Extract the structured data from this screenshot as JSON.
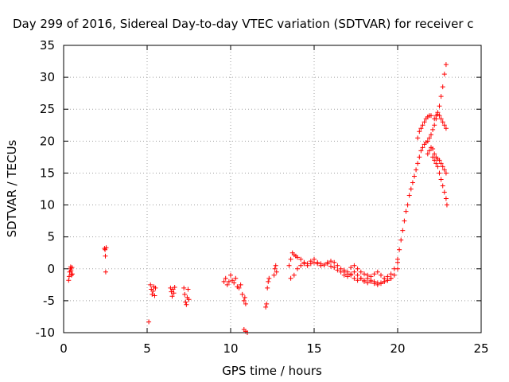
{
  "chart_data": {
    "type": "scatter",
    "title": "Day 299 of 2016, Sidereal Day-to-day VTEC variation (SDTVAR) for receiver c",
    "xlabel": "GPS time / hours",
    "ylabel": "SDTVAR / TECUs",
    "xlim": [
      0,
      25
    ],
    "ylim": [
      -10,
      35
    ],
    "xticks": [
      0,
      5,
      10,
      15,
      20,
      25
    ],
    "yticks": [
      -10,
      -5,
      0,
      5,
      10,
      15,
      20,
      25,
      30,
      35
    ],
    "grid": true,
    "marker": "plus",
    "marker_color": "#ff0000",
    "series": [
      {
        "x": [
          0.3,
          0.33,
          0.36,
          0.4,
          0.42,
          0.44,
          0.47,
          0.5,
          0.52,
          2.45,
          2.48,
          2.5,
          2.52,
          2.55,
          5.1,
          5.2,
          5.25,
          5.3,
          5.35,
          5.4,
          5.45,
          5.5,
          6.4,
          6.45,
          6.5,
          6.55,
          6.6,
          6.65,
          7.2,
          7.25,
          7.3,
          7.35,
          7.4,
          7.45,
          7.5,
          9.6,
          9.7,
          9.8,
          9.9,
          10.0,
          10.1,
          10.2,
          10.3,
          10.4,
          10.5,
          10.6,
          10.7,
          10.8,
          10.85,
          10.9,
          10.8,
          10.9,
          11.0,
          12.1,
          12.15,
          12.2,
          12.25,
          12.3,
          12.6,
          12.65,
          12.7,
          12.75,
          13.5,
          13.6,
          13.7,
          13.8,
          13.9,
          14.0,
          14.2,
          14.4,
          14.6,
          14.8,
          15.0,
          15.2,
          15.4,
          15.6,
          15.8,
          16.0,
          16.2,
          16.4,
          16.6,
          16.8,
          17.0,
          17.2,
          17.4,
          17.6,
          17.8,
          18.0,
          18.2,
          18.4,
          18.6,
          18.8,
          19.0,
          19.2,
          19.4,
          19.6,
          19.8,
          20.0,
          13.6,
          13.8,
          14.0,
          14.2,
          14.4,
          14.6,
          14.8,
          15.0,
          15.2,
          15.4,
          15.6,
          15.8,
          16.0,
          16.2,
          16.4,
          16.6,
          16.8,
          17.0,
          17.2,
          17.4,
          17.6,
          17.8,
          18.0,
          18.2,
          18.4,
          18.6,
          18.8,
          19.0,
          19.2,
          19.4,
          19.6,
          19.8,
          20.0,
          16.8,
          17.0,
          17.2,
          17.4,
          17.6,
          17.8,
          18.0,
          18.2,
          18.4,
          18.6,
          18.8,
          19.0,
          19.2,
          19.4,
          19.6,
          20.0,
          20.1,
          20.2,
          20.3,
          20.4,
          20.5,
          20.6,
          20.7,
          20.8,
          20.9,
          21.0,
          21.1,
          21.2,
          21.3,
          21.4,
          21.5,
          21.6,
          21.7,
          21.8,
          21.9,
          22.0,
          22.1,
          22.2,
          22.3,
          22.4,
          22.5,
          22.6,
          22.7,
          22.8,
          22.9,
          21.2,
          21.3,
          21.4,
          21.5,
          21.6,
          21.7,
          21.8,
          21.9,
          22.0,
          21.8,
          21.9,
          22.0,
          22.1,
          22.2,
          22.3,
          22.4,
          22.5,
          22.6,
          22.7,
          22.8,
          22.9,
          22.1,
          22.2,
          22.3,
          22.4,
          22.5,
          22.6,
          22.7,
          22.8,
          22.9,
          22.95,
          22.2,
          22.3,
          22.4,
          22.5,
          22.6,
          22.7,
          22.8,
          22.9
        ],
        "y": [
          -1.8,
          -1.2,
          -0.5,
          0.0,
          0.3,
          -0.3,
          -1.0,
          0.2,
          -0.8,
          3.2,
          3.0,
          2.0,
          -0.5,
          3.3,
          -8.3,
          -2.5,
          -3.2,
          -4.0,
          -3.5,
          -2.8,
          -4.2,
          -3.0,
          -3.0,
          -3.6,
          -4.3,
          -3.2,
          -3.8,
          -2.9,
          -3.0,
          -4.0,
          -5.2,
          -5.6,
          -4.5,
          -3.2,
          -4.8,
          -2.0,
          -1.5,
          -2.5,
          -2.0,
          -1.0,
          -1.8,
          -2.2,
          -1.5,
          -2.8,
          -3.0,
          -2.5,
          -4.0,
          -5.0,
          -4.5,
          -5.5,
          -9.5,
          -9.8,
          -10.0,
          -6.0,
          -5.5,
          -3.0,
          -2.0,
          -1.5,
          -1.0,
          0.0,
          0.5,
          -0.5,
          0.5,
          1.5,
          2.5,
          2.2,
          2.0,
          1.8,
          1.5,
          1.0,
          0.8,
          1.2,
          1.5,
          1.0,
          0.8,
          0.6,
          1.0,
          1.2,
          1.0,
          0.5,
          0.0,
          -0.2,
          -0.5,
          0.2,
          0.5,
          0.0,
          -0.5,
          -0.8,
          -1.0,
          -1.2,
          -0.8,
          -0.5,
          -1.0,
          -1.5,
          -1.2,
          -0.8,
          0.0,
          1.0,
          -1.5,
          -1.0,
          0.0,
          0.5,
          0.8,
          0.5,
          0.8,
          1.0,
          0.8,
          0.5,
          0.6,
          0.8,
          0.4,
          0.2,
          -0.2,
          -0.5,
          -1.0,
          -1.2,
          -0.8,
          -0.5,
          -1.0,
          -1.5,
          -1.8,
          -1.5,
          -1.8,
          -2.0,
          -2.2,
          -2.3,
          -2.0,
          -1.8,
          -1.5,
          -1.0,
          0.0,
          -0.5,
          -0.8,
          -1.0,
          -1.5,
          -1.8,
          -1.5,
          -2.0,
          -2.2,
          -2.0,
          -2.3,
          -2.5,
          -2.2,
          -2.0,
          -1.8,
          -1.5,
          1.5,
          3.0,
          4.5,
          6.0,
          7.5,
          9.0,
          10.0,
          11.5,
          12.5,
          13.5,
          14.5,
          15.5,
          16.5,
          17.5,
          18.5,
          19.0,
          19.5,
          19.8,
          20.0,
          20.5,
          21.0,
          21.8,
          22.5,
          23.5,
          24.5,
          25.5,
          27.0,
          28.5,
          30.5,
          32.0,
          20.5,
          21.5,
          22.0,
          22.5,
          23.0,
          23.5,
          23.8,
          24.0,
          24.0,
          18.0,
          18.5,
          19.0,
          18.8,
          18.0,
          17.5,
          17.2,
          17.0,
          16.5,
          16.0,
          15.5,
          15.0,
          17.5,
          17.0,
          16.5,
          16.0,
          15.0,
          14.0,
          13.0,
          12.0,
          11.0,
          10.0,
          23.5,
          24.0,
          24.2,
          24.0,
          23.5,
          23.0,
          22.5,
          22.0
        ]
      }
    ]
  }
}
